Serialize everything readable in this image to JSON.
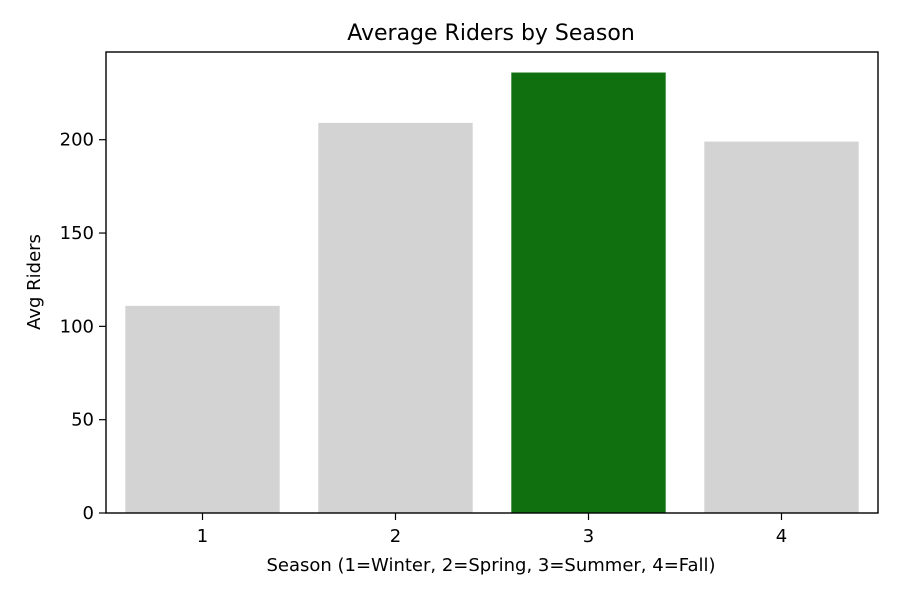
{
  "chart_data": {
    "type": "bar",
    "title": "Average Riders by Season",
    "xlabel": "Season (1=Winter, 2=Spring, 3=Summer, 4=Fall)",
    "ylabel": "Avg Riders",
    "categories": [
      "1",
      "2",
      "3",
      "4"
    ],
    "values": [
      111,
      209,
      236,
      199
    ],
    "ylim": [
      0,
      247
    ],
    "yticks": [
      "0",
      "50",
      "100",
      "150",
      "200"
    ],
    "bar_colors": [
      "#d3d3d3",
      "#d3d3d3",
      "#107010",
      "#d3d3d3"
    ],
    "grid": false,
    "legend": "none"
  }
}
